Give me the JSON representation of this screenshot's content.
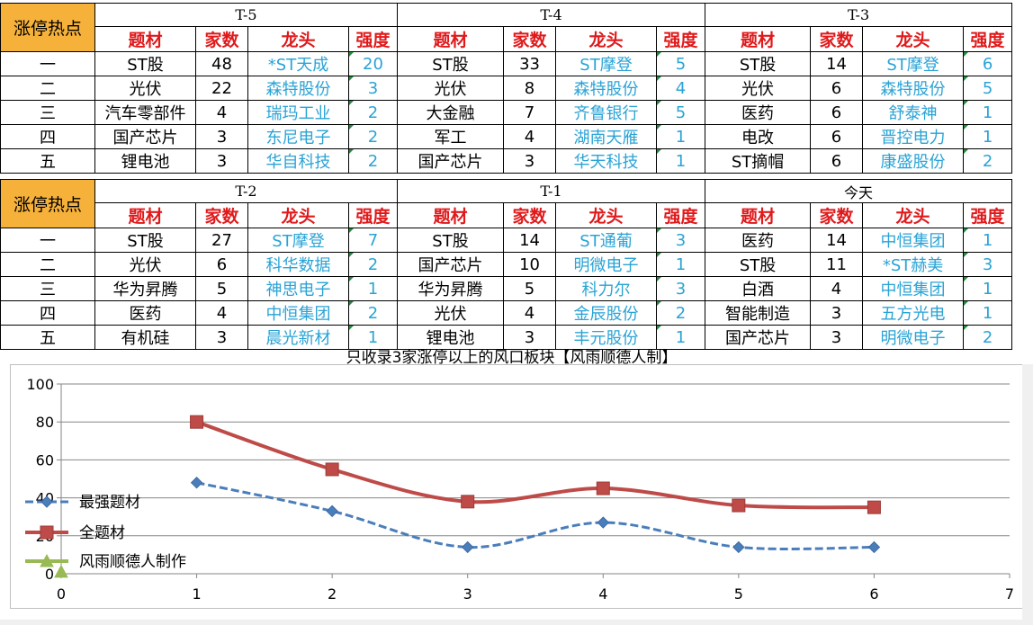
{
  "corner_label": "涨停热点",
  "headers": {
    "theme": "题材",
    "count": "家数",
    "leader": "龙头",
    "strength": "强度"
  },
  "ranks": [
    "一",
    "二",
    "三",
    "四",
    "五"
  ],
  "tables": [
    {
      "periods": [
        {
          "label": "T-5",
          "rows": [
            {
              "theme": "ST股",
              "count": "48",
              "leader": "*ST天成",
              "strength": "20"
            },
            {
              "theme": "光伏",
              "count": "22",
              "leader": "森特股份",
              "strength": "3"
            },
            {
              "theme": "汽车零部件",
              "count": "4",
              "leader": "瑞玛工业",
              "strength": "2"
            },
            {
              "theme": "国产芯片",
              "count": "3",
              "leader": "东尼电子",
              "strength": "2"
            },
            {
              "theme": "锂电池",
              "count": "3",
              "leader": "华自科技",
              "strength": "2"
            }
          ]
        },
        {
          "label": "T-4",
          "rows": [
            {
              "theme": "ST股",
              "count": "33",
              "leader": "ST摩登",
              "strength": "5"
            },
            {
              "theme": "光伏",
              "count": "8",
              "leader": "森特股份",
              "strength": "4"
            },
            {
              "theme": "大金融",
              "count": "7",
              "leader": "齐鲁银行",
              "strength": "5"
            },
            {
              "theme": "军工",
              "count": "4",
              "leader": "湖南天雁",
              "strength": "1"
            },
            {
              "theme": "国产芯片",
              "count": "3",
              "leader": "华天科技",
              "strength": "1"
            }
          ]
        },
        {
          "label": "T-3",
          "rows": [
            {
              "theme": "ST股",
              "count": "14",
              "leader": "ST摩登",
              "strength": "6"
            },
            {
              "theme": "光伏",
              "count": "6",
              "leader": "森特股份",
              "strength": "5"
            },
            {
              "theme": "医药",
              "count": "6",
              "leader": "舒泰神",
              "strength": "1"
            },
            {
              "theme": "电改",
              "count": "6",
              "leader": "晋控电力",
              "strength": "1"
            },
            {
              "theme": "ST摘帽",
              "count": "6",
              "leader": "康盛股份",
              "strength": "2"
            }
          ]
        }
      ]
    },
    {
      "periods": [
        {
          "label": "T-2",
          "rows": [
            {
              "theme": "ST股",
              "count": "27",
              "leader": "ST摩登",
              "strength": "7"
            },
            {
              "theme": "光伏",
              "count": "6",
              "leader": "科华数据",
              "strength": "2"
            },
            {
              "theme": "华为昇腾",
              "count": "5",
              "leader": "神思电子",
              "strength": "1"
            },
            {
              "theme": "医药",
              "count": "4",
              "leader": "中恒集团",
              "strength": "2"
            },
            {
              "theme": "有机硅",
              "count": "3",
              "leader": "晨光新材",
              "strength": "1"
            }
          ]
        },
        {
          "label": "T-1",
          "rows": [
            {
              "theme": "ST股",
              "count": "14",
              "leader": "ST通葡",
              "strength": "3"
            },
            {
              "theme": "国产芯片",
              "count": "10",
              "leader": "明微电子",
              "strength": "1"
            },
            {
              "theme": "华为昇腾",
              "count": "5",
              "leader": "科力尔",
              "strength": "3"
            },
            {
              "theme": "光伏",
              "count": "4",
              "leader": "金辰股份",
              "strength": "2"
            },
            {
              "theme": "锂电池",
              "count": "3",
              "leader": "丰元股份",
              "strength": "1"
            }
          ]
        },
        {
          "label": "今天",
          "rows": [
            {
              "theme": "医药",
              "count": "14",
              "leader": "中恒集团",
              "strength": "1"
            },
            {
              "theme": "ST股",
              "count": "11",
              "leader": "*ST赫美",
              "strength": "3"
            },
            {
              "theme": "白酒",
              "count": "4",
              "leader": "中恒集团",
              "strength": "1"
            },
            {
              "theme": "智能制造",
              "count": "3",
              "leader": "五方光电",
              "strength": "1"
            },
            {
              "theme": "国产芯片",
              "count": "3",
              "leader": "明微电子",
              "strength": "2"
            }
          ]
        }
      ]
    }
  ],
  "chart_data": {
    "type": "line",
    "title": "只收录3家涨停以上的风口板块【风雨顺德人制】",
    "xlim": [
      0,
      7
    ],
    "ylim": [
      0,
      100
    ],
    "x_ticks": [
      "0",
      "1",
      "2",
      "3",
      "4",
      "5",
      "6",
      "7"
    ],
    "y_ticks": [
      "0",
      "20",
      "40",
      "60",
      "80",
      "100"
    ],
    "grid": true,
    "legend_position": "left",
    "series": [
      {
        "name": "最强题材",
        "color": "#4a7ebb",
        "style": "dashed",
        "marker": "diamond",
        "x": [
          1,
          2,
          3,
          4,
          5,
          6
        ],
        "y": [
          48,
          33,
          14,
          27,
          14,
          14
        ]
      },
      {
        "name": "全题材",
        "color": "#be4b48",
        "style": "solid",
        "marker": "square",
        "x": [
          1,
          2,
          3,
          4,
          5,
          6
        ],
        "y": [
          80,
          55,
          38,
          45,
          36,
          35
        ]
      },
      {
        "name": "风雨顺德人制作",
        "color": "#98b954",
        "style": "solid",
        "marker": "triangle",
        "x": [
          0
        ],
        "y": [
          1
        ]
      }
    ]
  }
}
